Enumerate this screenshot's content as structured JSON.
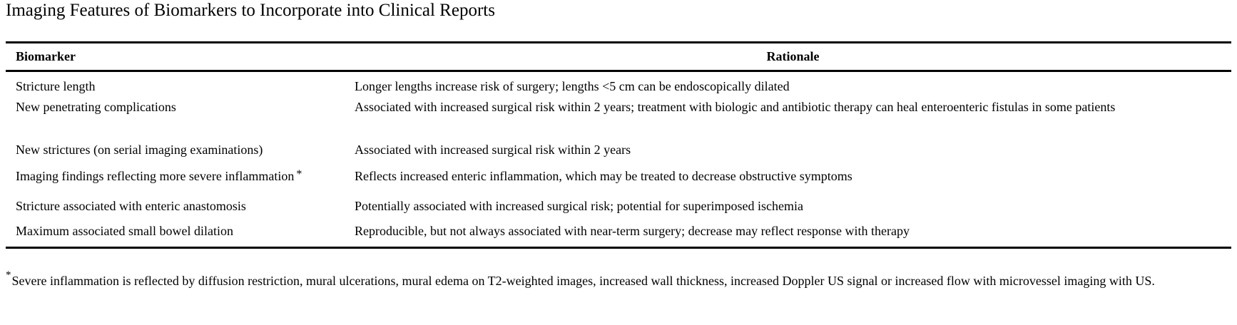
{
  "title": "Imaging Features of Biomarkers to Incorporate into Clinical Reports",
  "table": {
    "headers": {
      "biomarker": "Biomarker",
      "rationale": "Rationale"
    },
    "rows": [
      {
        "biomarker": "Stricture length",
        "rationale": "Longer lengths increase risk of surgery; lengths <5 cm can be endoscopically dilated"
      },
      {
        "biomarker": "New penetrating complications",
        "rationale": "Associated with increased surgical risk within 2 years; treatment with biologic and antibiotic therapy can heal enteroenteric fistulas in some patients"
      },
      {
        "biomarker": "New strictures (on serial imaging examinations)",
        "rationale": "Associated with increased surgical risk within 2 years"
      },
      {
        "biomarker": "Imaging findings reflecting more severe inflammation",
        "marker": "*",
        "rationale": "Reflects increased enteric inflammation, which may be treated to decrease obstructive symptoms"
      },
      {
        "biomarker": "Stricture associated with enteric anastomosis",
        "rationale": "Potentially associated with increased surgical risk; potential for superimposed ischemia"
      },
      {
        "biomarker": "Maximum associated small bowel dilation",
        "rationale": "Reproducible, but not always associated with near-term surgery; decrease may reflect response with therapy"
      }
    ]
  },
  "footnote": {
    "marker": "*",
    "text": "Severe inflammation is reflected by diffusion restriction, mural ulcerations, mural edema on T2-weighted images, increased wall thickness, increased Doppler US signal or increased flow with microvessel imaging with US."
  }
}
